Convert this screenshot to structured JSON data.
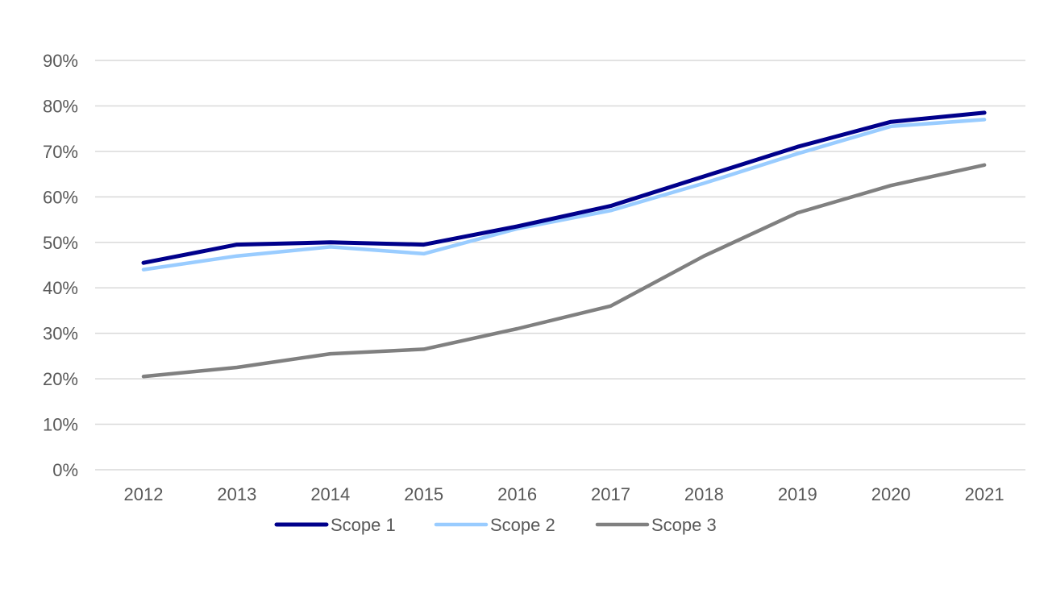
{
  "chart_data": {
    "type": "line",
    "title": "",
    "xlabel": "",
    "ylabel": "",
    "x": [
      "2012",
      "2013",
      "2014",
      "2015",
      "2016",
      "2017",
      "2018",
      "2019",
      "2020",
      "2021"
    ],
    "ylim": [
      0,
      90
    ],
    "y_ticks": [
      "0%",
      "10%",
      "20%",
      "30%",
      "40%",
      "50%",
      "60%",
      "70%",
      "80%",
      "90%"
    ],
    "y_tick_values": [
      0,
      10,
      20,
      30,
      40,
      50,
      60,
      70,
      80,
      90
    ],
    "y_unit": "percent",
    "grid": true,
    "legend_position": "bottom",
    "series": [
      {
        "name": "Scope 1",
        "color": "#00008B",
        "values": [
          45.5,
          49.5,
          50.0,
          49.5,
          53.5,
          58.0,
          64.5,
          71.0,
          76.5,
          78.5
        ]
      },
      {
        "name": "Scope 2",
        "color": "#99CCFF",
        "values": [
          44.0,
          47.0,
          49.0,
          47.5,
          53.0,
          57.0,
          63.0,
          69.5,
          75.5,
          77.0
        ]
      },
      {
        "name": "Scope 3",
        "color": "#808080",
        "values": [
          20.5,
          22.5,
          25.5,
          26.5,
          31.0,
          36.0,
          47.0,
          56.5,
          62.5,
          67.0
        ]
      }
    ]
  }
}
